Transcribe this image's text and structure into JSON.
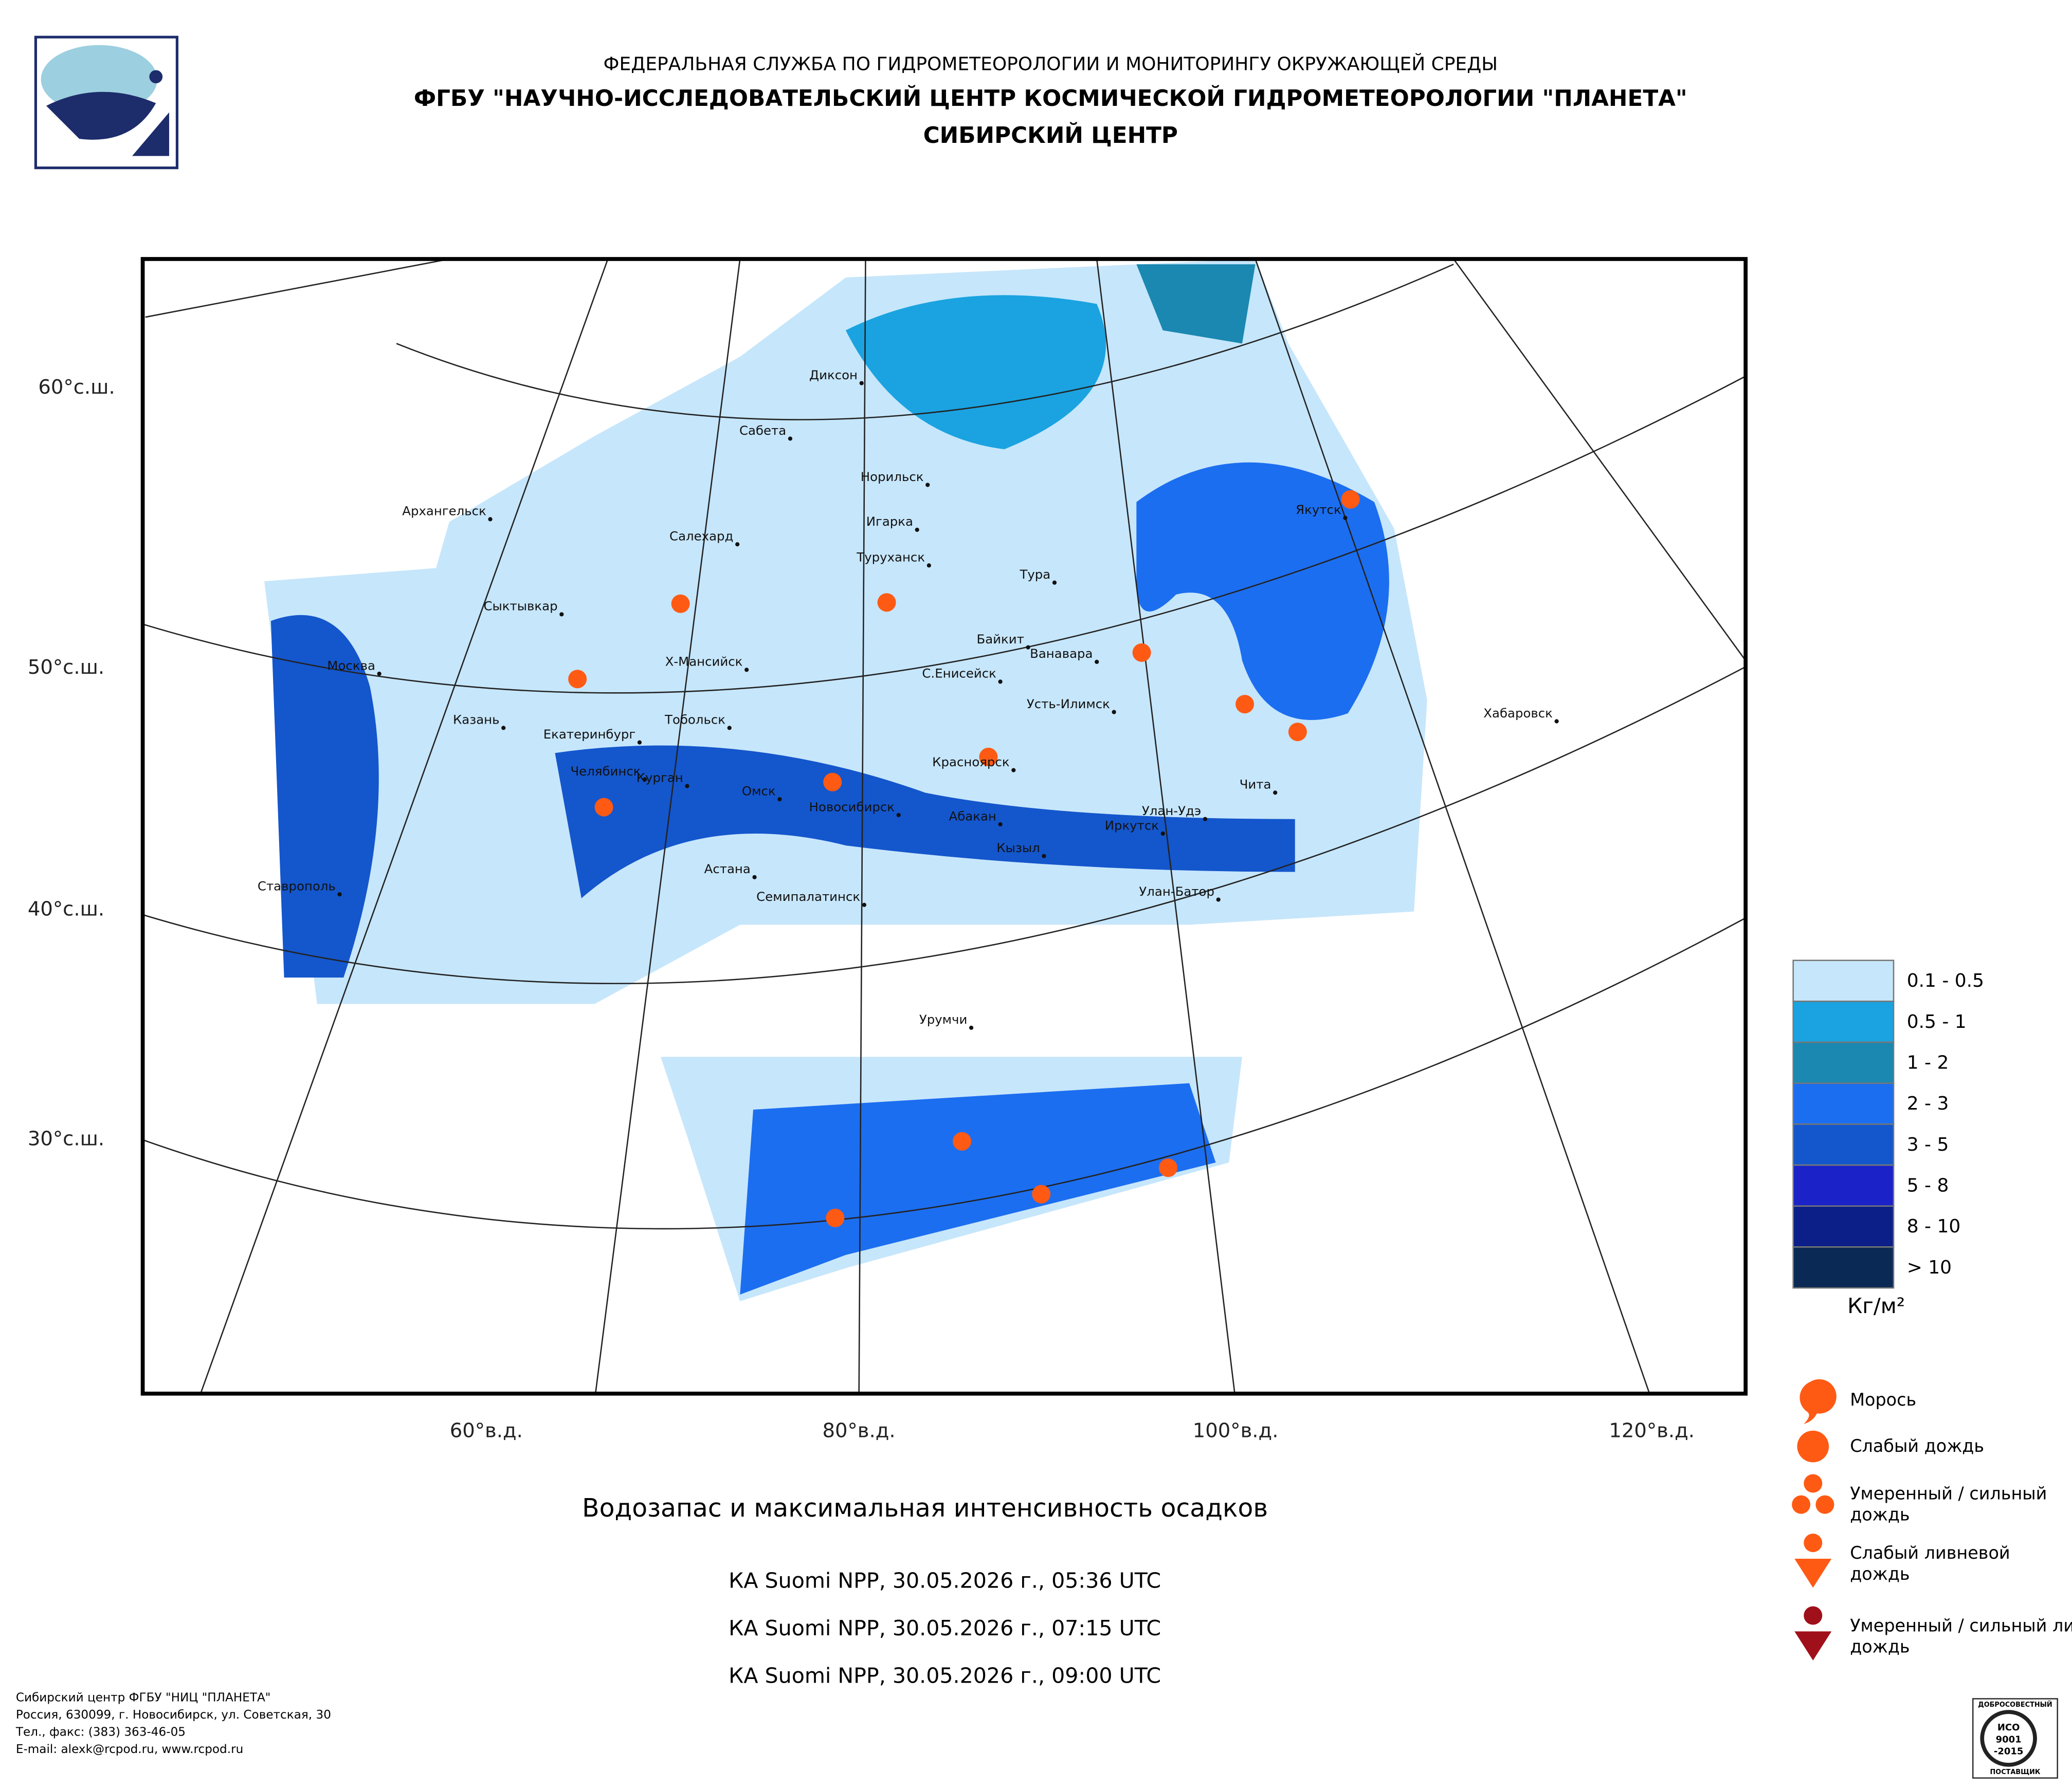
{
  "header": {
    "agency": "ФЕДЕРАЛЬНАЯ СЛУЖБА ПО ГИДРОМЕТЕОРОЛОГИИ И МОНИТОРИНГУ ОКРУЖАЮЩЕЙ СРЕДЫ",
    "institute": "ФГБУ \"НАУЧНО-ИССЛЕДОВАТЕЛЬСКИЙ ЦЕНТР КОСМИЧЕСКОЙ ГИДРОМЕТЕОРОЛОГИИ \"ПЛАНЕТА\"",
    "branch": "СИБИРСКИЙ ЦЕНТР"
  },
  "map": {
    "lat_labels": [
      "60°с.ш.",
      "50°с.ш.",
      "40°с.ш.",
      "30°с.ш."
    ],
    "lon_labels": [
      "60°в.д.",
      "80°в.д.",
      "100°в.д.",
      "120°в.д."
    ],
    "cities": [
      "Диксон",
      "Сабета",
      "Норильск",
      "Игарка",
      "Салехард",
      "Архангельск",
      "Туруханск",
      "Тура",
      "Якутск",
      "Сыктывкар",
      "Байкит",
      "Ванавара",
      "Х-Мансийск",
      "С.Енисейск",
      "Москва",
      "Усть-Илимск",
      "Хабаровск",
      "Казань",
      "Тобольск",
      "Екатеринбург",
      "Красноярск",
      "Челябинск",
      "Курган",
      "Омск",
      "Чита",
      "Новосибирск",
      "Улан-Удэ",
      "Абакан",
      "Иркутск",
      "Кызыл",
      "Астана",
      "Улан-Батор",
      "Семипалатинск",
      "Ставрополь",
      "Урумчи"
    ]
  },
  "legend": {
    "water": [
      {
        "label": "0.1 - 0.5",
        "color": "#c6e6fb"
      },
      {
        "label": "0.5 - 1",
        "color": "#1aa3e0"
      },
      {
        "label": "1 - 2",
        "color": "#1a88b0"
      },
      {
        "label": "2 - 3",
        "color": "#1c6ef0"
      },
      {
        "label": "3 - 5",
        "color": "#1456cc"
      },
      {
        "label": "5 - 8",
        "color": "#1a22c8"
      },
      {
        "label": "8 - 10",
        "color": "#0c1f88"
      },
      {
        "label": "> 10",
        "color": "#0a2a55"
      }
    ],
    "unit": "Кг/м²",
    "precip": [
      "Морось",
      "Слабый дождь",
      "Умеренный / сильный дождь",
      "Слабый ливневой дождь",
      "Умеренный / сильный ливневой дождь"
    ]
  },
  "caption": {
    "title": "Водозапас и максимальная интенсивность осадков",
    "passes": [
      "КА Suomi NPP, 30.05.2026 г., 05:36 UTC",
      "КА Suomi NPP, 30.05.2026 г., 07:15 UTC",
      "КА Suomi NPP, 30.05.2026 г., 09:00 UTC"
    ]
  },
  "footer": {
    "lines": [
      "Сибирский центр ФГБУ \"НИЦ \"ПЛАНЕТА\"",
      "Россия, 630099, г. Новосибирск, ул. Советская, 30",
      "Тел., факс: (383) 363-46-05",
      "E-mail: alexk@rcpod.ru, www.rcpod.ru"
    ],
    "badge": [
      "ДОБРОСОВЕСТНЫЙ",
      "ИСО",
      "9001",
      "-2015",
      "ПОСТАВЩИК"
    ]
  }
}
